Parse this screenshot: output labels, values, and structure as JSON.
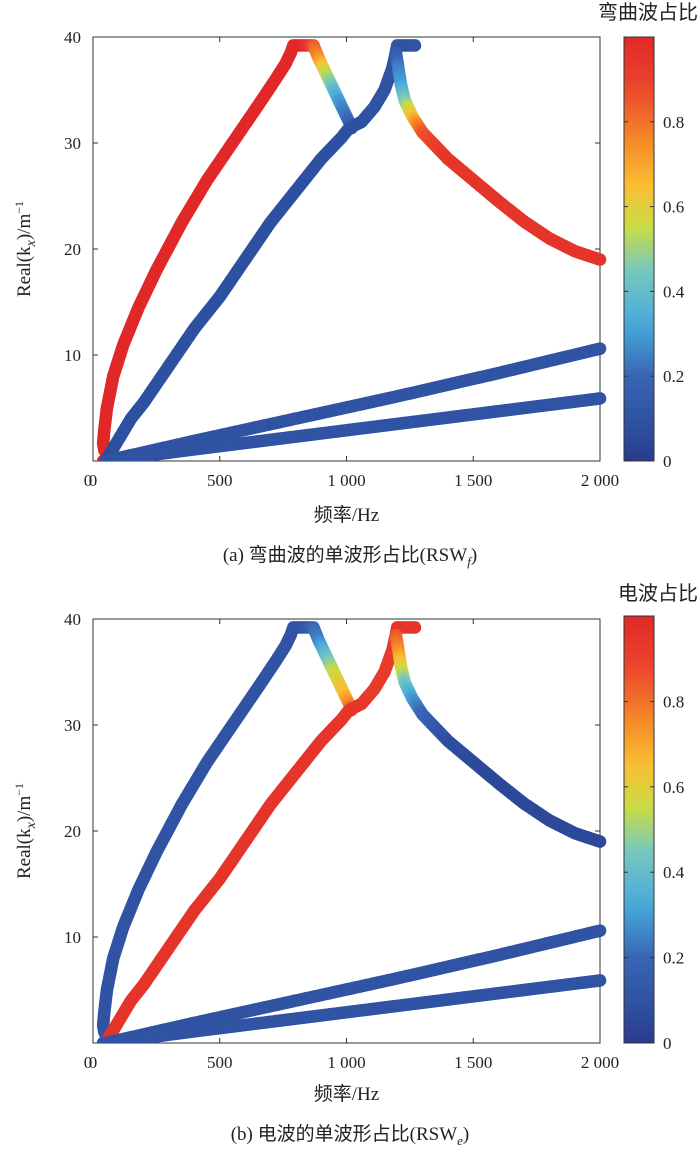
{
  "chart_data": [
    {
      "type": "scatter",
      "colorbar_title": "弯曲波占比",
      "xlabel": "频率/Hz",
      "ylabel": "Real(k",
      "ylabel_sub": "x",
      "ylabel_unit": ")/m",
      "ylabel_sup": "−1",
      "caption": "(a) 弯曲波的单波形占比(RSW",
      "caption_sub": "f",
      "caption_end": ")",
      "xlim": [
        0,
        2000
      ],
      "ylim": [
        0,
        40
      ],
      "xticks": [
        0,
        500,
        1000,
        1500,
        2000
      ],
      "xtick_labels": [
        "0",
        "500",
        "1 000",
        "1 500",
        "2 000"
      ],
      "yticks": [
        10,
        20,
        30,
        40
      ],
      "ytick_labels": [
        "10",
        "20",
        "30",
        "40"
      ],
      "colorbar_ticks": [
        0,
        0.2,
        0.4,
        0.6,
        0.8
      ],
      "colorbar_tick_labels": [
        "0",
        "0.2",
        "0.4",
        "0.6",
        "0.8"
      ],
      "colorbar_range": [
        0,
        1
      ],
      "colormap": "jet",
      "series": [
        {
          "points": [
            [
              40,
              0,
              1
            ],
            [
              50,
              0.3,
              1
            ],
            [
              75,
              0,
              1
            ],
            [
              100,
              0,
              1
            ],
            [
              45,
              1,
              1
            ],
            [
              40,
              1.7,
              1
            ],
            [
              45,
              3,
              1
            ],
            [
              55,
              5,
              1
            ],
            [
              80,
              8,
              1
            ],
            [
              120,
              11,
              1
            ],
            [
              180,
              14.5,
              1
            ],
            [
              250,
              18,
              1
            ],
            [
              350,
              22.5,
              1
            ],
            [
              450,
              26.5,
              1
            ],
            [
              550,
              30,
              1
            ],
            [
              650,
              33.5,
              1
            ],
            [
              720,
              36,
              1
            ],
            [
              760,
              37.5,
              1
            ],
            [
              780,
              38.5,
              1
            ],
            [
              790,
              39.2,
              1
            ],
            [
              820,
              39.2,
              1
            ],
            [
              850,
              39.2,
              0.95
            ],
            [
              870,
              39.2,
              0.85
            ],
            [
              890,
              38,
              0.75
            ],
            [
              910,
              37,
              0.6
            ],
            [
              930,
              36,
              0.5
            ],
            [
              950,
              35,
              0.4
            ],
            [
              970,
              34,
              0.3
            ],
            [
              990,
              33,
              0.25
            ],
            [
              1010,
              32,
              0.2
            ],
            [
              1020,
              31.4,
              0.15
            ]
          ]
        },
        {
          "points": [
            [
              50,
              0,
              0.05
            ],
            [
              100,
              2,
              0.08
            ],
            [
              150,
              4,
              0.08
            ],
            [
              200,
              5.5,
              0.08
            ],
            [
              300,
              9,
              0.08
            ],
            [
              400,
              12.5,
              0.08
            ],
            [
              500,
              15.5,
              0.08
            ],
            [
              600,
              19,
              0.08
            ],
            [
              700,
              22.5,
              0.08
            ],
            [
              800,
              25.5,
              0.08
            ],
            [
              900,
              28.5,
              0.08
            ],
            [
              980,
              30.5,
              0.08
            ],
            [
              1010,
              31.4,
              0.08
            ],
            [
              1060,
              32,
              0.08
            ],
            [
              1110,
              33.4,
              0.1
            ],
            [
              1150,
              35,
              0.1
            ],
            [
              1180,
              37,
              0.1
            ],
            [
              1190,
              38,
              0.1
            ],
            [
              1200,
              39.2,
              0.1
            ],
            [
              1230,
              39.2,
              0.1
            ],
            [
              1270,
              39.2,
              0.1
            ]
          ]
        },
        {
          "points": [
            [
              1195,
              38.5,
              0.15
            ],
            [
              1205,
              37,
              0.25
            ],
            [
              1215,
              35.5,
              0.3
            ],
            [
              1230,
              34,
              0.45
            ],
            [
              1260,
              32.5,
              0.65
            ],
            [
              1300,
              31,
              0.85
            ],
            [
              1400,
              28.5,
              0.95
            ],
            [
              1500,
              26.5,
              0.95
            ],
            [
              1600,
              24.5,
              0.95
            ],
            [
              1700,
              22.6,
              0.95
            ],
            [
              1800,
              21,
              0.95
            ],
            [
              1900,
              19.8,
              0.95
            ],
            [
              2000,
              19,
              0.95
            ]
          ]
        },
        {
          "points": [
            [
              50,
              0,
              0.1
            ],
            [
              400,
              1.9,
              0.1
            ],
            [
              800,
              4,
              0.1
            ],
            [
              1200,
              6.1,
              0.1
            ],
            [
              1600,
              8.3,
              0.1
            ],
            [
              2000,
              10.6,
              0.1
            ]
          ]
        },
        {
          "points": [
            [
              50,
              0,
              0.1
            ],
            [
              400,
              1.1,
              0.1
            ],
            [
              800,
              2.3,
              0.1
            ],
            [
              1200,
              3.5,
              0.1
            ],
            [
              1600,
              4.7,
              0.1
            ],
            [
              2000,
              5.9,
              0.1
            ]
          ]
        }
      ]
    },
    {
      "type": "scatter",
      "colorbar_title": "电波占比",
      "xlabel": "频率/Hz",
      "ylabel": "Real(k",
      "ylabel_sub": "x",
      "ylabel_unit": ")/m",
      "ylabel_sup": "−1",
      "caption": "(b) 电波的单波形占比(RSW",
      "caption_sub": "e",
      "caption_end": ")",
      "xlim": [
        0,
        2000
      ],
      "ylim": [
        0,
        40
      ],
      "xticks": [
        0,
        500,
        1000,
        1500,
        2000
      ],
      "xtick_labels": [
        "0",
        "500",
        "1 000",
        "1 500",
        "2 000"
      ],
      "yticks": [
        10,
        20,
        30,
        40
      ],
      "ytick_labels": [
        "10",
        "20",
        "30",
        "40"
      ],
      "colorbar_ticks": [
        0,
        0.2,
        0.4,
        0.6,
        0.8
      ],
      "colorbar_tick_labels": [
        "0",
        "0.2",
        "0.4",
        "0.6",
        "0.8"
      ],
      "colorbar_range": [
        0,
        1
      ],
      "colormap": "jet",
      "series": [
        {
          "points": [
            [
              40,
              0,
              0.1
            ],
            [
              50,
              0.3,
              0.1
            ],
            [
              75,
              0,
              0.1
            ],
            [
              100,
              0,
              0.1
            ],
            [
              45,
              1,
              0.1
            ],
            [
              40,
              1.7,
              0.1
            ],
            [
              45,
              3,
              0.1
            ],
            [
              55,
              5,
              0.1
            ],
            [
              80,
              8,
              0.1
            ],
            [
              120,
              11,
              0.1
            ],
            [
              180,
              14.5,
              0.1
            ],
            [
              250,
              18,
              0.1
            ],
            [
              350,
              22.5,
              0.1
            ],
            [
              450,
              26.5,
              0.1
            ],
            [
              550,
              30,
              0.1
            ],
            [
              650,
              33.5,
              0.1
            ],
            [
              720,
              36,
              0.1
            ],
            [
              760,
              37.5,
              0.1
            ],
            [
              780,
              38.5,
              0.1
            ],
            [
              790,
              39.2,
              0.1
            ],
            [
              820,
              39.2,
              0.1
            ],
            [
              850,
              39.2,
              0.15
            ],
            [
              870,
              39.2,
              0.2
            ],
            [
              890,
              38,
              0.25
            ],
            [
              910,
              37,
              0.35
            ],
            [
              930,
              36,
              0.45
            ],
            [
              950,
              35,
              0.55
            ],
            [
              970,
              34,
              0.6
            ],
            [
              990,
              33,
              0.65
            ],
            [
              1010,
              32,
              0.75
            ],
            [
              1020,
              31.4,
              0.85
            ]
          ]
        },
        {
          "points": [
            [
              50,
              0,
              0.95
            ],
            [
              100,
              2,
              0.95
            ],
            [
              150,
              4,
              0.95
            ],
            [
              200,
              5.5,
              0.95
            ],
            [
              300,
              9,
              0.95
            ],
            [
              400,
              12.5,
              0.95
            ],
            [
              500,
              15.5,
              0.95
            ],
            [
              600,
              19,
              0.95
            ],
            [
              700,
              22.5,
              0.95
            ],
            [
              800,
              25.5,
              0.95
            ],
            [
              900,
              28.5,
              0.95
            ],
            [
              980,
              30.5,
              0.95
            ],
            [
              1010,
              31.4,
              0.95
            ],
            [
              1060,
              32,
              0.95
            ],
            [
              1110,
              33.4,
              0.92
            ],
            [
              1150,
              35,
              0.92
            ],
            [
              1180,
              37,
              0.92
            ],
            [
              1190,
              38,
              0.92
            ],
            [
              1200,
              39.2,
              0.95
            ],
            [
              1230,
              39.2,
              0.95
            ],
            [
              1270,
              39.2,
              0.95
            ]
          ]
        },
        {
          "points": [
            [
              1195,
              38.5,
              0.85
            ],
            [
              1205,
              37,
              0.75
            ],
            [
              1215,
              35.5,
              0.6
            ],
            [
              1230,
              34,
              0.45
            ],
            [
              1260,
              32.5,
              0.3
            ],
            [
              1300,
              31,
              0.2
            ],
            [
              1400,
              28.5,
              0.08
            ],
            [
              1500,
              26.5,
              0.06
            ],
            [
              1600,
              24.5,
              0.05
            ],
            [
              1700,
              22.6,
              0.05
            ],
            [
              1800,
              21,
              0.05
            ],
            [
              1900,
              19.8,
              0.05
            ],
            [
              2000,
              19,
              0.05
            ]
          ]
        },
        {
          "points": [
            [
              50,
              0,
              0.1
            ],
            [
              400,
              1.9,
              0.1
            ],
            [
              800,
              4,
              0.1
            ],
            [
              1200,
              6.1,
              0.1
            ],
            [
              1600,
              8.3,
              0.1
            ],
            [
              2000,
              10.6,
              0.1
            ]
          ]
        },
        {
          "points": [
            [
              50,
              0,
              0.1
            ],
            [
              400,
              1.1,
              0.1
            ],
            [
              800,
              2.3,
              0.1
            ],
            [
              1200,
              3.5,
              0.1
            ],
            [
              1600,
              4.7,
              0.1
            ],
            [
              2000,
              5.9,
              0.1
            ]
          ]
        }
      ]
    }
  ]
}
